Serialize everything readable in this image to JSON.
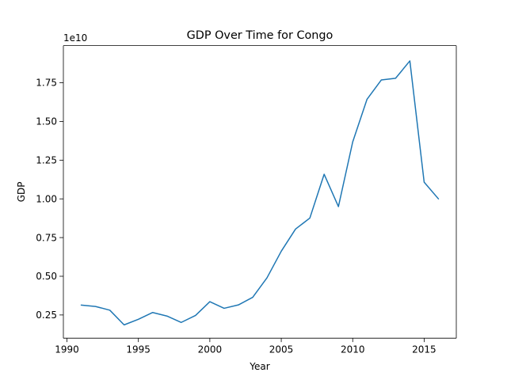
{
  "chart_data": {
    "type": "line",
    "title": "GDP Over Time for Congo",
    "xlabel": "Year",
    "ylabel": "GDP",
    "y_offset_label": "1e10",
    "xlim": [
      1989.75,
      2017.25
    ],
    "ylim": [
      0.1,
      1.99
    ],
    "y_scale_multiplier": 10000000000,
    "x_ticks": [
      1990,
      1995,
      2000,
      2005,
      2010,
      2015
    ],
    "x_tick_labels": [
      "1990",
      "1995",
      "2000",
      "2005",
      "2010",
      "2015"
    ],
    "y_ticks": [
      0.25,
      0.5,
      0.75,
      1.0,
      1.25,
      1.5,
      1.75
    ],
    "y_tick_labels": [
      "0.25",
      "0.50",
      "0.75",
      "1.00",
      "1.25",
      "1.50",
      "1.75"
    ],
    "grid": false,
    "legend": "none",
    "series": [
      {
        "color": "#1f77b4",
        "x": [
          1991,
          1992,
          1993,
          1994,
          1995,
          1996,
          1997,
          1998,
          1999,
          2000,
          2001,
          2002,
          2003,
          2004,
          2005,
          2006,
          2007,
          2008,
          2009,
          2010,
          2011,
          2012,
          2013,
          2014,
          2015,
          2016
        ],
        "y": [
          0.314,
          0.305,
          0.281,
          0.186,
          0.222,
          0.266,
          0.243,
          0.202,
          0.247,
          0.336,
          0.293,
          0.315,
          0.364,
          0.49,
          0.662,
          0.805,
          0.876,
          1.159,
          0.95,
          1.368,
          1.643,
          1.768,
          1.779,
          1.891,
          1.108,
          1.0
        ]
      }
    ]
  }
}
